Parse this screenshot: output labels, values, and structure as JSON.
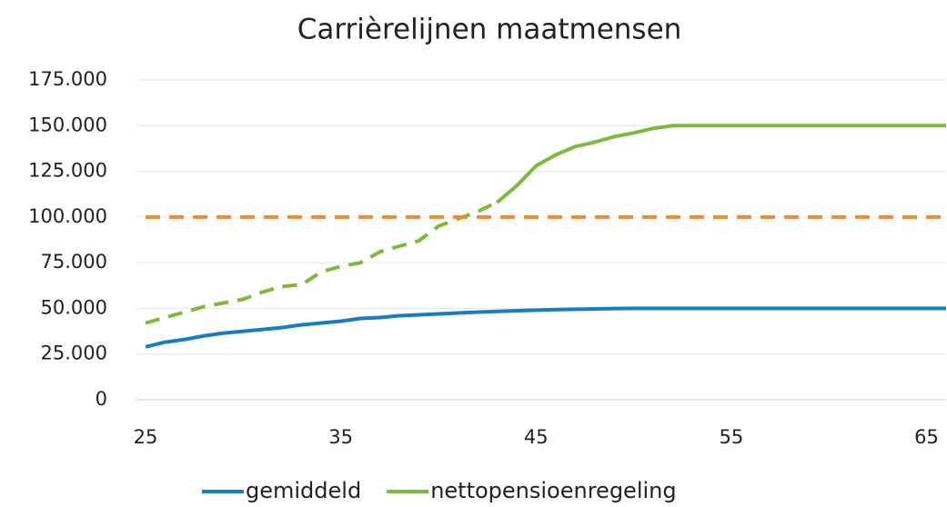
{
  "chart_data": {
    "type": "line",
    "title": "Carrièrelijnen maatmensen",
    "x": [
      25,
      26,
      27,
      28,
      29,
      30,
      31,
      32,
      33,
      34,
      35,
      36,
      37,
      38,
      39,
      40,
      41,
      42,
      43,
      44,
      45,
      46,
      47,
      48,
      49,
      50,
      51,
      52,
      53,
      54,
      55,
      56,
      57,
      58,
      59,
      60,
      61,
      62,
      63,
      64,
      65,
      66
    ],
    "xlim": [
      25,
      66
    ],
    "xticks": [
      25,
      35,
      45,
      55,
      65
    ],
    "ylim": [
      0,
      175000
    ],
    "yticks": [
      0,
      {
        "value": 25000,
        "label": "25.000"
      },
      {
        "value": 50000,
        "label": "50.000"
      },
      {
        "value": 75000,
        "label": "75.000"
      },
      {
        "value": 100000,
        "label": "100.000"
      },
      {
        "value": 125000,
        "label": "125.000"
      },
      {
        "value": 150000,
        "label": "150.000"
      },
      {
        "value": 175000,
        "label": "175.000"
      }
    ],
    "grid": true,
    "legend": "bottom",
    "series": [
      {
        "name": "gemiddeld",
        "color": "#1a7cc1",
        "dashed": false,
        "values": [
          29000,
          31500,
          33000,
          35000,
          36500,
          37500,
          38500,
          39500,
          41000,
          42000,
          43000,
          44500,
          45000,
          46000,
          46500,
          47000,
          47500,
          48000,
          48300,
          48700,
          49000,
          49300,
          49500,
          49700,
          49900,
          50000,
          50000,
          50000,
          50000,
          50000,
          50000,
          50000,
          50000,
          50000,
          50000,
          50000,
          50000,
          50000,
          50000,
          50000,
          50000,
          50000
        ]
      },
      {
        "name": "nettopensioenregeling",
        "color": "#7dba3c",
        "dashed": false,
        "values": [
          null,
          null,
          null,
          null,
          null,
          null,
          null,
          null,
          null,
          null,
          null,
          null,
          null,
          null,
          null,
          null,
          null,
          null,
          108000,
          117000,
          128000,
          134000,
          138500,
          141000,
          144000,
          146000,
          148500,
          150000,
          150000,
          150000,
          150000,
          150000,
          150000,
          150000,
          150000,
          150000,
          150000,
          150000,
          150000,
          150000,
          150000,
          150000
        ]
      },
      {
        "color": "#7dba3c",
        "dashed": true,
        "values": [
          42000,
          45000,
          48000,
          51000,
          53000,
          55000,
          59000,
          62000,
          63000,
          70000,
          73000,
          75000,
          81000,
          84000,
          87000,
          95000,
          99000,
          103000,
          108000,
          null,
          null,
          null,
          null,
          null,
          null,
          null,
          null,
          null,
          null,
          null,
          null,
          null,
          null,
          null,
          null,
          null,
          null,
          null,
          null,
          null,
          null,
          null
        ]
      },
      {
        "color": "#f08a2c",
        "dashed": true,
        "values": [
          100000,
          100000,
          100000,
          100000,
          100000,
          100000,
          100000,
          100000,
          100000,
          100000,
          100000,
          100000,
          100000,
          100000,
          100000,
          100000,
          100000,
          100000,
          100000,
          100000,
          100000,
          100000,
          100000,
          100000,
          100000,
          100000,
          100000,
          100000,
          100000,
          100000,
          100000,
          100000,
          100000,
          100000,
          100000,
          100000,
          100000,
          100000,
          100000,
          100000,
          100000,
          100000
        ]
      }
    ]
  }
}
